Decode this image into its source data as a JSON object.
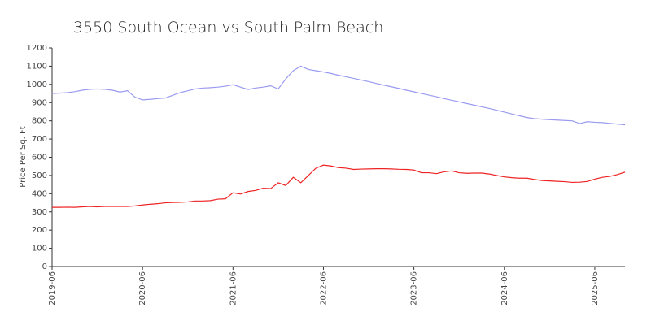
{
  "chart_data": {
    "type": "line",
    "title": "3550 South Ocean vs South Palm Beach",
    "y_label": "Price Per Sq. Ft",
    "x": [
      "2019-06",
      "2019-07",
      "2019-08",
      "2019-09",
      "2019-10",
      "2019-11",
      "2019-12",
      "2020-01",
      "2020-02",
      "2020-03",
      "2020-04",
      "2020-05",
      "2020-06",
      "2020-07",
      "2020-08",
      "2020-09",
      "2020-10",
      "2020-11",
      "2020-12",
      "2021-01",
      "2021-02",
      "2021-03",
      "2021-04",
      "2021-05",
      "2021-06",
      "2021-07",
      "2021-08",
      "2021-09",
      "2021-10",
      "2021-11",
      "2021-12",
      "2022-01",
      "2022-02",
      "2022-03",
      "2022-04",
      "2022-05",
      "2022-06",
      "2022-07",
      "2022-08",
      "2022-09",
      "2022-10",
      "2022-11",
      "2022-12",
      "2023-01",
      "2023-02",
      "2023-03",
      "2023-04",
      "2023-05",
      "2023-06",
      "2023-07",
      "2023-08",
      "2023-09",
      "2023-10",
      "2023-11",
      "2023-12",
      "2024-01",
      "2024-02",
      "2024-03",
      "2024-04",
      "2024-05",
      "2024-06",
      "2024-07",
      "2024-08",
      "2024-09",
      "2024-10",
      "2024-11",
      "2024-12",
      "2025-01",
      "2025-02",
      "2025-03",
      "2025-04",
      "2025-05",
      "2025-06",
      "2025-07",
      "2025-08",
      "2025-09",
      "2025-10"
    ],
    "series": [
      {
        "color": "#9a9af0",
        "values": [
          950,
          952,
          955,
          960,
          968,
          973,
          975,
          973,
          968,
          958,
          965,
          930,
          915,
          918,
          922,
          925,
          940,
          955,
          965,
          975,
          980,
          982,
          985,
          990,
          998,
          985,
          972,
          980,
          985,
          992,
          975,
          1030,
          1075,
          1100,
          1082,
          1075,
          1068,
          1060,
          1050,
          1042,
          1033,
          1024,
          1015,
          1005,
          996,
          987,
          978,
          968,
          959,
          950,
          941,
          932,
          922,
          913,
          904,
          895,
          886,
          877,
          868,
          858,
          848,
          838,
          828,
          818,
          812,
          809,
          806,
          804,
          802,
          800,
          785,
          795,
          792,
          790,
          786,
          782,
          778
        ]
      },
      {
        "color": "#ee2222",
        "values": [
          325,
          325,
          326,
          325,
          328,
          330,
          328,
          330,
          330,
          330,
          330,
          333,
          338,
          342,
          345,
          350,
          352,
          353,
          355,
          360,
          360,
          362,
          370,
          372,
          405,
          398,
          412,
          418,
          430,
          428,
          460,
          445,
          490,
          460,
          500,
          540,
          557,
          552,
          543,
          540,
          533,
          535,
          536,
          537,
          537,
          536,
          534,
          533,
          530,
          515,
          515,
          510,
          520,
          525,
          515,
          512,
          513,
          513,
          508,
          500,
          492,
          488,
          485,
          485,
          478,
          472,
          470,
          468,
          466,
          462,
          463,
          467,
          480,
          490,
          495,
          505,
          518
        ]
      }
    ],
    "xlim": [
      "2019-06",
      "2025-10"
    ],
    "xticks": [
      "2019-06",
      "2020-06",
      "2021-06",
      "2022-06",
      "2023-06",
      "2024-06",
      "2025-06"
    ],
    "ylim": [
      0,
      1200
    ],
    "yticks": [
      0,
      100,
      200,
      300,
      400,
      500,
      600,
      700,
      800,
      900,
      1000,
      1100,
      1200
    ]
  }
}
